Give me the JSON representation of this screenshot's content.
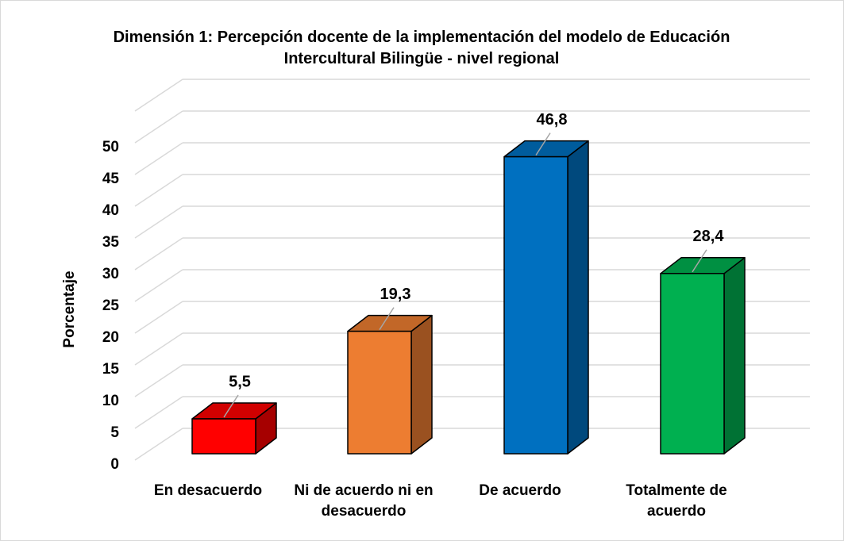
{
  "chart_data": {
    "type": "bar3d",
    "title": "Dimensión 1: Percepción docente de la implementación del modelo de Educación Intercultural Bilingüe - nivel regional",
    "y_label": "Porcentaje",
    "categories": [
      "En desacuerdo",
      "Ni de acuerdo ni en desacuerdo",
      "De acuerdo",
      "Totalmente de acuerdo"
    ],
    "values": [
      5.5,
      19.3,
      46.8,
      28.4
    ],
    "value_labels": [
      "5,5",
      "19,3",
      "46,8",
      "28,4"
    ],
    "colors": [
      "#ff0000",
      "#ed7d31",
      "#0070c0",
      "#00b050"
    ],
    "ylim": [
      0,
      55
    ],
    "yticks": [
      0,
      5,
      10,
      15,
      20,
      25,
      30,
      35,
      40,
      45,
      50
    ],
    "grid": true
  }
}
